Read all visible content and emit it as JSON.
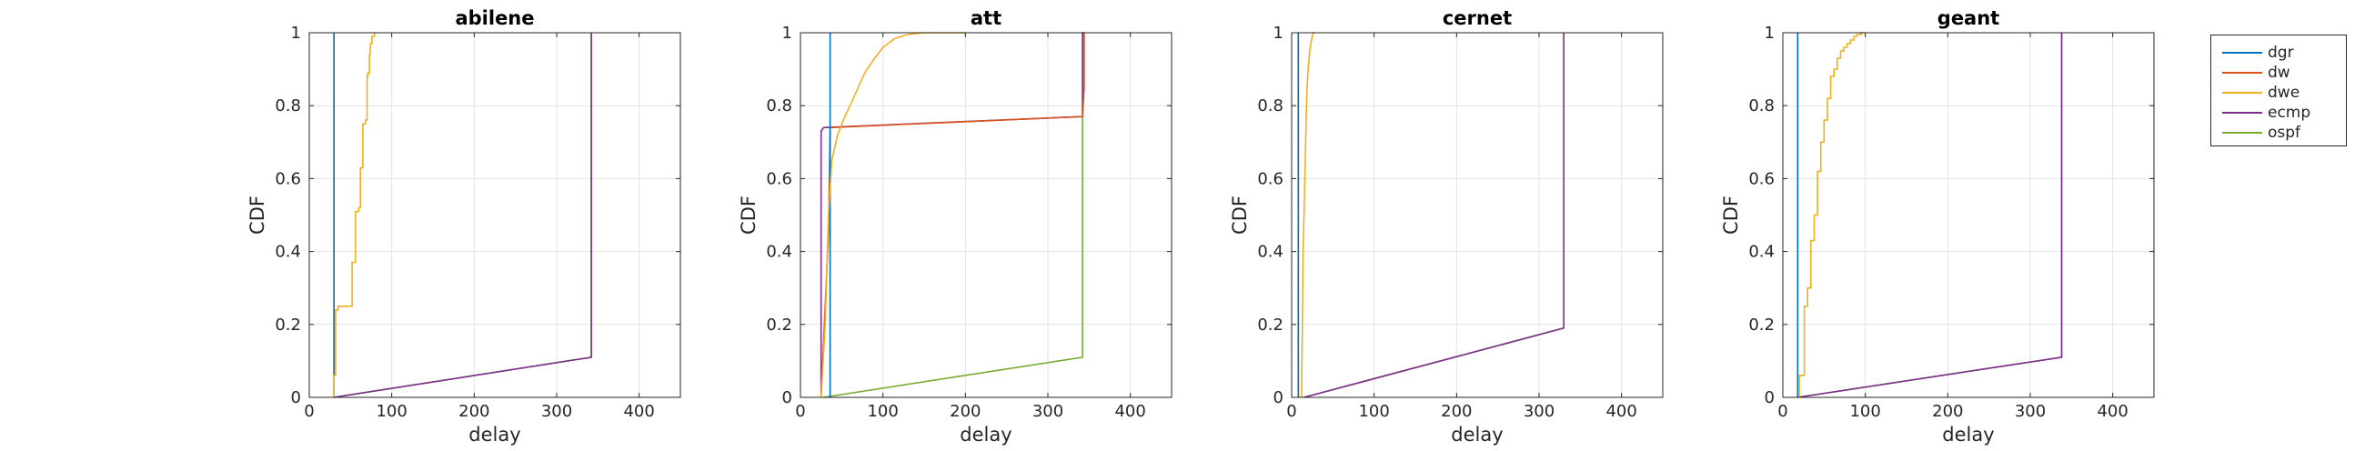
{
  "chart_data": [
    {
      "type": "line",
      "title": "abilene",
      "xlabel": "delay",
      "ylabel": "CDF",
      "xlim": [
        0,
        450
      ],
      "ylim": [
        0,
        1
      ],
      "xticks": [
        0,
        100,
        200,
        300,
        400
      ],
      "yticks": [
        0,
        0.2,
        0.4,
        0.6,
        0.8,
        1
      ],
      "ytick_labels": [
        "0",
        "0.2",
        "0.4",
        "0.6",
        "0.8",
        "1"
      ],
      "grid": true,
      "series": [
        {
          "name": "ospf",
          "color": "#77AC30",
          "x": [
            30,
            342,
            342
          ],
          "y": [
            0,
            0.11,
            1
          ]
        },
        {
          "name": "ecmp",
          "color": "#7E2F8E",
          "x": [
            30,
            342,
            342
          ],
          "y": [
            0,
            0.11,
            1
          ]
        },
        {
          "name": "dw",
          "color": "#D95319",
          "x": [
            30,
            30
          ],
          "y": [
            0,
            1
          ]
        },
        {
          "name": "dgr",
          "color": "#0072BD",
          "x": [
            30,
            30
          ],
          "y": [
            0,
            1
          ]
        },
        {
          "name": "dwe",
          "color": "#EDB120",
          "x": [
            30,
            30,
            32,
            32,
            35,
            35,
            52,
            52,
            56,
            56,
            60,
            60,
            62,
            62,
            65,
            65,
            68,
            68,
            70,
            70,
            71,
            71,
            73,
            73,
            74,
            74,
            76,
            76,
            79,
            79,
            80
          ],
          "y": [
            0,
            0.06,
            0.06,
            0.24,
            0.24,
            0.25,
            0.25,
            0.37,
            0.37,
            0.51,
            0.51,
            0.52,
            0.52,
            0.63,
            0.63,
            0.75,
            0.75,
            0.76,
            0.76,
            0.88,
            0.88,
            0.89,
            0.89,
            0.94,
            0.94,
            0.97,
            0.97,
            0.99,
            0.99,
            1.0,
            1.0
          ]
        }
      ]
    },
    {
      "type": "line",
      "title": "att",
      "xlabel": "delay",
      "ylabel": "CDF",
      "xlim": [
        0,
        450
      ],
      "ylim": [
        0,
        1
      ],
      "xticks": [
        0,
        100,
        200,
        300,
        400
      ],
      "yticks": [
        0,
        0.2,
        0.4,
        0.6,
        0.8,
        1
      ],
      "ytick_labels": [
        "0",
        "0.2",
        "0.4",
        "0.6",
        "0.8",
        "1"
      ],
      "grid": true,
      "series": [
        {
          "name": "ospf",
          "color": "#77AC30",
          "x": [
            28,
            342,
            342
          ],
          "y": [
            0,
            0.11,
            1
          ]
        },
        {
          "name": "ecmp",
          "color": "#7E2F8E",
          "x": [
            25,
            25,
            28,
            342,
            342,
            344
          ],
          "y": [
            0,
            0.73,
            0.74,
            0.77,
            1,
            1
          ]
        },
        {
          "name": "dw",
          "color": "#D95319",
          "x": [
            25,
            34,
            36,
            342,
            344,
            344
          ],
          "y": [
            0,
            0.45,
            0.74,
            0.77,
            0.85,
            1
          ]
        },
        {
          "name": "dgr",
          "color": "#0072BD",
          "x": [
            36,
            36
          ],
          "y": [
            0,
            1
          ]
        },
        {
          "name": "dwe",
          "color": "#EDB120",
          "x": [
            25,
            30,
            34,
            38,
            45,
            52,
            60,
            68,
            78,
            90,
            100,
            115,
            130,
            150,
            200
          ],
          "y": [
            0,
            0.2,
            0.5,
            0.65,
            0.72,
            0.76,
            0.8,
            0.84,
            0.89,
            0.93,
            0.96,
            0.985,
            0.995,
            1.0,
            1.0
          ]
        }
      ]
    },
    {
      "type": "line",
      "title": "cernet",
      "xlabel": "delay",
      "ylabel": "CDF",
      "xlim": [
        0,
        450
      ],
      "ylim": [
        0,
        1
      ],
      "xticks": [
        0,
        100,
        200,
        300,
        400
      ],
      "yticks": [
        0,
        0.2,
        0.4,
        0.6,
        0.8,
        1
      ],
      "ytick_labels": [
        "0",
        "0.2",
        "0.4",
        "0.6",
        "0.8",
        "1"
      ],
      "grid": true,
      "series": [
        {
          "name": "ospf",
          "color": "#77AC30",
          "x": [
            15,
            330,
            330
          ],
          "y": [
            0,
            0.19,
            1
          ]
        },
        {
          "name": "ecmp",
          "color": "#7E2F8E",
          "x": [
            15,
            330,
            330
          ],
          "y": [
            0,
            0.19,
            1
          ]
        },
        {
          "name": "dw",
          "color": "#D95319",
          "x": [
            8,
            8
          ],
          "y": [
            0,
            1
          ]
        },
        {
          "name": "dgr",
          "color": "#0072BD",
          "x": [
            8,
            8
          ],
          "y": [
            0,
            1
          ]
        },
        {
          "name": "dwe",
          "color": "#EDB120",
          "x": [
            12,
            13,
            14,
            15,
            16,
            17,
            18,
            19,
            20,
            22,
            24,
            26,
            28
          ],
          "y": [
            0,
            0.2,
            0.42,
            0.5,
            0.6,
            0.7,
            0.8,
            0.86,
            0.9,
            0.95,
            0.98,
            1.0,
            1.0
          ]
        }
      ]
    },
    {
      "type": "line",
      "title": "geant",
      "xlabel": "delay",
      "ylabel": "CDF",
      "xlim": [
        0,
        450
      ],
      "ylim": [
        0,
        1
      ],
      "xticks": [
        0,
        100,
        200,
        300,
        400
      ],
      "yticks": [
        0,
        0.2,
        0.4,
        0.6,
        0.8,
        1
      ],
      "ytick_labels": [
        "0",
        "0.2",
        "0.4",
        "0.6",
        "0.8",
        "1"
      ],
      "grid": true,
      "series": [
        {
          "name": "ospf",
          "color": "#77AC30",
          "x": [
            18,
            338,
            338
          ],
          "y": [
            0,
            0.11,
            1
          ]
        },
        {
          "name": "ecmp",
          "color": "#7E2F8E",
          "x": [
            18,
            338,
            338
          ],
          "y": [
            0,
            0.11,
            1
          ]
        },
        {
          "name": "dw",
          "color": "#D95319",
          "x": [
            18,
            18
          ],
          "y": [
            0,
            1
          ]
        },
        {
          "name": "dgr",
          "color": "#0072BD",
          "x": [
            18,
            18
          ],
          "y": [
            0,
            1
          ]
        },
        {
          "name": "dwe",
          "color": "#EDB120",
          "x": [
            20,
            20,
            26,
            26,
            30,
            30,
            34,
            34,
            38,
            38,
            42,
            42,
            46,
            46,
            50,
            50,
            54,
            54,
            58,
            58,
            62,
            62,
            66,
            66,
            70,
            70,
            74,
            74,
            78,
            78,
            82,
            82,
            86,
            86,
            90,
            90,
            95,
            95,
            100
          ],
          "y": [
            0,
            0.06,
            0.06,
            0.25,
            0.25,
            0.3,
            0.3,
            0.43,
            0.43,
            0.5,
            0.5,
            0.62,
            0.62,
            0.7,
            0.7,
            0.76,
            0.76,
            0.82,
            0.82,
            0.88,
            0.88,
            0.9,
            0.9,
            0.93,
            0.93,
            0.95,
            0.95,
            0.96,
            0.96,
            0.97,
            0.97,
            0.98,
            0.98,
            0.99,
            0.99,
            0.995,
            0.995,
            1.0,
            1.0
          ]
        }
      ]
    }
  ],
  "legend": {
    "placement": "outside-right-top",
    "entries": [
      {
        "label": "dgr",
        "color": "#0072BD"
      },
      {
        "label": "dw",
        "color": "#D95319"
      },
      {
        "label": "dwe",
        "color": "#EDB120"
      },
      {
        "label": "ecmp",
        "color": "#7E2F8E"
      },
      {
        "label": "ospf",
        "color": "#77AC30"
      }
    ]
  }
}
